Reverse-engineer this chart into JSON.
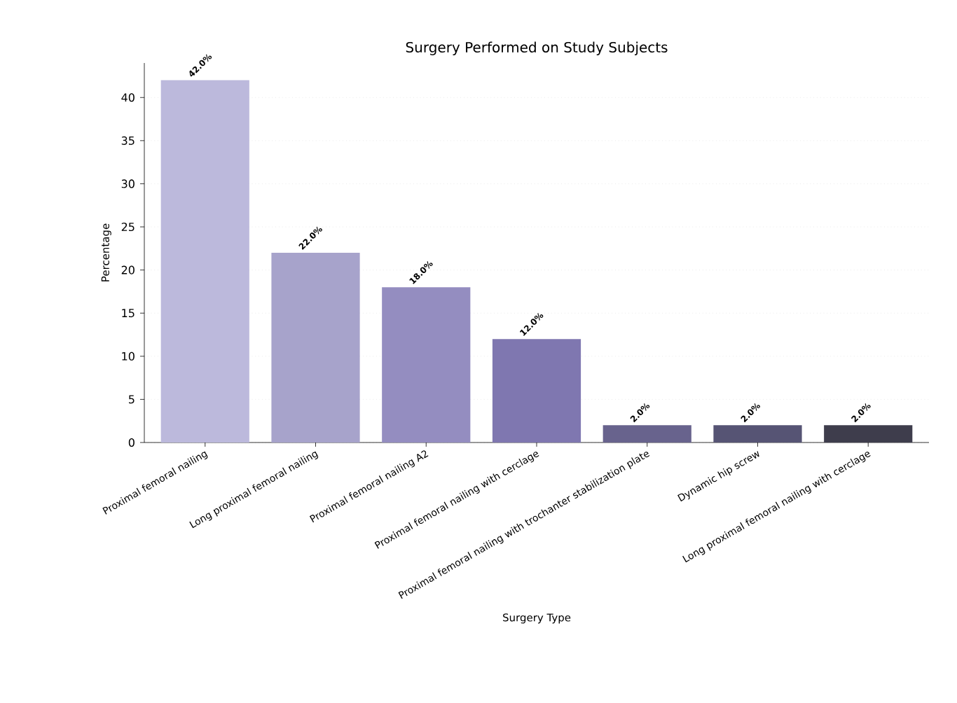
{
  "chart_data": {
    "type": "bar",
    "title": "Surgery Performed on Study Subjects",
    "xlabel": "Surgery Type",
    "ylabel": "Percentage",
    "categories": [
      "Proximal femoral nailing",
      "Long proximal femoral nailing",
      "Proximal femoral nailing A2",
      "Proximal femoral nailing with cerclage",
      "Proximal femoral nailing with trochanter stabilization plate",
      "Dynamic hip screw",
      "Long proximal femoral nailing with cerclage"
    ],
    "values": [
      42,
      22,
      18,
      12,
      2,
      2,
      2
    ],
    "value_labels": [
      "42.0%",
      "22.0%",
      "18.0%",
      "12.0%",
      "2.0%",
      "2.0%",
      "2.0%"
    ],
    "colors": [
      "#bcb9dc",
      "#a7a3cb",
      "#948dc0",
      "#7f77b0",
      "#68638d",
      "#565474",
      "#3e3d4c"
    ],
    "ylim": [
      0,
      44
    ],
    "yticks": [
      0,
      5,
      10,
      15,
      20,
      25,
      30,
      35,
      40
    ],
    "grid": "y"
  }
}
